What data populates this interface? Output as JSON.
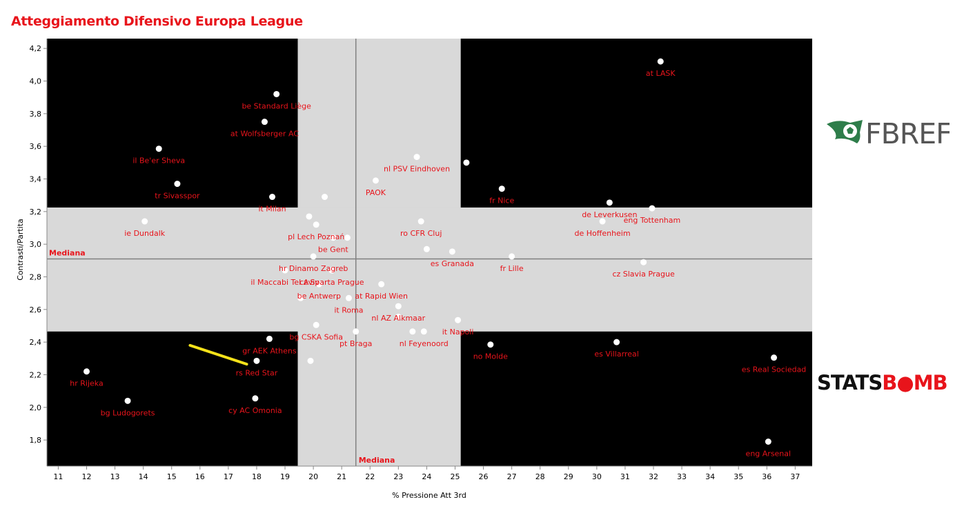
{
  "chart_data": {
    "type": "scatter",
    "title": "Atteggiamento Difensivo Europa League",
    "xlabel": "% Pressione Att 3rd",
    "ylabel": "Contrasti/Partita",
    "xlim": [
      10.6,
      37.6
    ],
    "ylim": [
      1.64,
      4.26
    ],
    "x_ticks": [
      11,
      12,
      13,
      14,
      15,
      16,
      17,
      18,
      19,
      20,
      21,
      22,
      23,
      24,
      25,
      26,
      27,
      28,
      29,
      30,
      31,
      32,
      33,
      34,
      35,
      36,
      37
    ],
    "y_ticks": [
      1.8,
      2.0,
      2.2,
      2.4,
      2.6,
      2.8,
      3.0,
      3.2,
      3.4,
      3.6,
      3.8,
      4.0,
      4.2
    ],
    "y_tick_labels": [
      "1,8",
      "2,0",
      "2,2",
      "2,4",
      "2,6",
      "2,8",
      "3,0",
      "3,2",
      "3,4",
      "3,6",
      "3,8",
      "4,0",
      "4,2"
    ],
    "median_x": 21.5,
    "median_y": 2.91,
    "median_label": "Mediana",
    "band_x": [
      19.45,
      25.2
    ],
    "band_y": [
      2.465,
      3.225
    ],
    "points": [
      {
        "label": "at LASK",
        "x": 32.25,
        "y": 4.12
      },
      {
        "label": "be Standard Liège",
        "x": 18.7,
        "y": 3.92
      },
      {
        "label": "at Wolfsberger AC",
        "x": 18.28,
        "y": 3.75
      },
      {
        "label": "il Be'er Sheva",
        "x": 14.55,
        "y": 3.585
      },
      {
        "label": "nl PSV Eindhoven",
        "x": 23.65,
        "y": 3.535
      },
      {
        "label": "",
        "x": 25.4,
        "y": 3.5
      },
      {
        "label": "PAOK",
        "x": 22.2,
        "y": 3.39
      },
      {
        "label": "tr Sivasspor",
        "x": 15.2,
        "y": 3.37
      },
      {
        "label": "fr Nice",
        "x": 26.65,
        "y": 3.34
      },
      {
        "label": "it Milan",
        "x": 18.55,
        "y": 3.29
      },
      {
        "label": "",
        "x": 20.4,
        "y": 3.29
      },
      {
        "label": "de Leverkusen",
        "x": 30.45,
        "y": 3.255
      },
      {
        "label": "eng Tottenham",
        "x": 31.95,
        "y": 3.22
      },
      {
        "label": "",
        "x": 19.85,
        "y": 3.17
      },
      {
        "label": "pl Lech Poznań",
        "x": 20.1,
        "y": 3.12
      },
      {
        "label": "ie Dundalk",
        "x": 14.05,
        "y": 3.14
      },
      {
        "label": "ro CFR Cluj",
        "x": 23.8,
        "y": 3.14
      },
      {
        "label": "de Hoffenheim",
        "x": 30.2,
        "y": 3.14
      },
      {
        "label": "be Gent",
        "x": 20.7,
        "y": 3.04
      },
      {
        "label": "",
        "x": 21.2,
        "y": 3.04
      },
      {
        "label": "",
        "x": 24.0,
        "y": 2.97
      },
      {
        "label": "es Granada",
        "x": 24.9,
        "y": 2.955
      },
      {
        "label": "hr Dinamo Zagreb",
        "x": 20.0,
        "y": 2.925
      },
      {
        "label": "fr Lille",
        "x": 27.0,
        "y": 2.925
      },
      {
        "label": "cz Slavia Prague",
        "x": 31.65,
        "y": 2.89
      },
      {
        "label": "il Maccabi Tel Aviv",
        "x": 19.0,
        "y": 2.84
      },
      {
        "label": "cz Sparta Prague",
        "x": 20.65,
        "y": 2.84
      },
      {
        "label": "be Antwerp",
        "x": 20.2,
        "y": 2.755
      },
      {
        "label": "at Rapid Wien",
        "x": 22.4,
        "y": 2.755
      },
      {
        "label": "",
        "x": 19.55,
        "y": 2.67
      },
      {
        "label": "it Roma",
        "x": 21.25,
        "y": 2.67
      },
      {
        "label": "nl AZ Alkmaar",
        "x": 23.0,
        "y": 2.62
      },
      {
        "label": "",
        "x": 23.0,
        "y": 2.555
      },
      {
        "label": "it Napoli",
        "x": 25.1,
        "y": 2.535
      },
      {
        "label": "bg CSKA Sofia",
        "x": 20.1,
        "y": 2.505
      },
      {
        "label": "pt Braga",
        "x": 21.5,
        "y": 2.465
      },
      {
        "label": "",
        "x": 23.5,
        "y": 2.465
      },
      {
        "label": "nl Feyenoord",
        "x": 23.9,
        "y": 2.465
      },
      {
        "label": "gr AEK Athens",
        "x": 18.45,
        "y": 2.42
      },
      {
        "label": "es Villarreal",
        "x": 30.7,
        "y": 2.4
      },
      {
        "label": "no Molde",
        "x": 26.25,
        "y": 2.385
      },
      {
        "label": "es Real Sociedad",
        "x": 36.25,
        "y": 2.305
      },
      {
        "label": "rs Red Star",
        "x": 18.0,
        "y": 2.285
      },
      {
        "label": "",
        "x": 19.9,
        "y": 2.285
      },
      {
        "label": "hr Rijeka",
        "x": 12.0,
        "y": 2.22
      },
      {
        "label": "cy AC Omonia",
        "x": 17.95,
        "y": 2.055
      },
      {
        "label": "bg Ludogorets",
        "x": 13.45,
        "y": 2.04
      },
      {
        "label": "eng Arsenal",
        "x": 36.05,
        "y": 1.79
      }
    ],
    "highlight_line": {
      "x": [
        15.65,
        17.65
      ],
      "y": [
        2.38,
        2.265
      ],
      "color": "#f5e21a"
    },
    "colors": {
      "quadrant": "#000000",
      "band": "#d9d9d9",
      "label": "#e8141b",
      "point": "#ffffff",
      "median_line": "#808080",
      "background": "#ffffff"
    }
  },
  "logos": {
    "fbref_text": "FBREF",
    "statsbomb_left": "STATS",
    "statsbomb_right": "B",
    "statsbomb_end": "MB"
  }
}
